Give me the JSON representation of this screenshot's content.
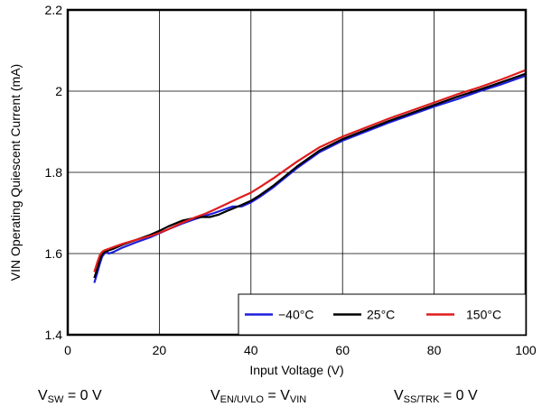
{
  "chart_data": {
    "type": "line",
    "xlabel": "Input Voltage (V)",
    "ylabel": "VIN Operating Quiescent Current (mA)",
    "xlim": [
      0,
      100
    ],
    "ylim": [
      1.4,
      2.2
    ],
    "xticks": [
      0,
      20,
      40,
      60,
      80,
      100
    ],
    "yticks": [
      1.4,
      1.6,
      1.8,
      2.0,
      2.2
    ],
    "xtick_labels": [
      "0",
      "20",
      "40",
      "60",
      "80",
      "100"
    ],
    "ytick_labels": [
      "1.4",
      "1.6",
      "1.8",
      "2",
      "2.2"
    ],
    "grid": true,
    "legend_position": "bottom-right",
    "series": [
      {
        "name": "−40°C",
        "color": "#1f1fdb",
        "x": [
          5.8,
          6.5,
          7.0,
          7.5,
          8.0,
          8.5,
          9,
          10,
          12,
          15,
          18,
          20,
          22,
          25,
          28,
          30,
          32,
          34,
          36,
          38,
          40,
          42,
          45,
          50,
          55,
          60,
          65,
          70,
          75,
          80,
          85,
          90,
          95,
          100
        ],
        "y": [
          1.528,
          1.555,
          1.575,
          1.592,
          1.6,
          1.605,
          1.6,
          1.604,
          1.615,
          1.628,
          1.64,
          1.65,
          1.66,
          1.674,
          1.686,
          1.693,
          1.7,
          1.708,
          1.716,
          1.716,
          1.726,
          1.74,
          1.764,
          1.81,
          1.85,
          1.878,
          1.9,
          1.922,
          1.942,
          1.962,
          1.98,
          2.0,
          2.018,
          2.038
        ]
      },
      {
        "name": "25°C",
        "color": "#000000",
        "x": [
          5.8,
          6.5,
          7.0,
          7.5,
          8.0,
          9,
          10,
          12,
          15,
          18,
          20,
          22,
          25,
          27,
          29,
          31,
          33,
          35,
          38,
          40,
          42,
          45,
          50,
          55,
          60,
          65,
          70,
          75,
          80,
          85,
          90,
          95,
          100
        ],
        "y": [
          1.54,
          1.565,
          1.585,
          1.598,
          1.604,
          1.608,
          1.612,
          1.622,
          1.634,
          1.646,
          1.656,
          1.667,
          1.681,
          1.686,
          1.69,
          1.69,
          1.696,
          1.706,
          1.72,
          1.73,
          1.744,
          1.768,
          1.814,
          1.854,
          1.882,
          1.904,
          1.926,
          1.946,
          1.966,
          1.986,
          2.004,
          2.023,
          2.043
        ]
      },
      {
        "name": "150°C",
        "color": "#e01c1c",
        "x": [
          5.8,
          6.5,
          7.0,
          7.5,
          8.0,
          9,
          10,
          12,
          15,
          18,
          20,
          22,
          25,
          28,
          30,
          32,
          35,
          38,
          40,
          42,
          45,
          50,
          55,
          60,
          65,
          70,
          75,
          80,
          85,
          90,
          95,
          100
        ],
        "y": [
          1.555,
          1.58,
          1.596,
          1.604,
          1.608,
          1.612,
          1.616,
          1.624,
          1.634,
          1.643,
          1.651,
          1.66,
          1.676,
          1.69,
          1.698,
          1.708,
          1.724,
          1.74,
          1.75,
          1.764,
          1.786,
          1.826,
          1.862,
          1.888,
          1.91,
          1.932,
          1.952,
          1.972,
          1.992,
          2.01,
          2.03,
          2.052
        ]
      }
    ]
  },
  "conditions": [
    {
      "main": "V",
      "sub": "SW",
      "rest": " = 0 V"
    },
    {
      "main": "V",
      "sub": "EN/UVLO",
      "rest": " = V",
      "sub2": "VIN"
    },
    {
      "main": "V",
      "sub": "SS/TRK",
      "rest": " = 0 V"
    }
  ]
}
